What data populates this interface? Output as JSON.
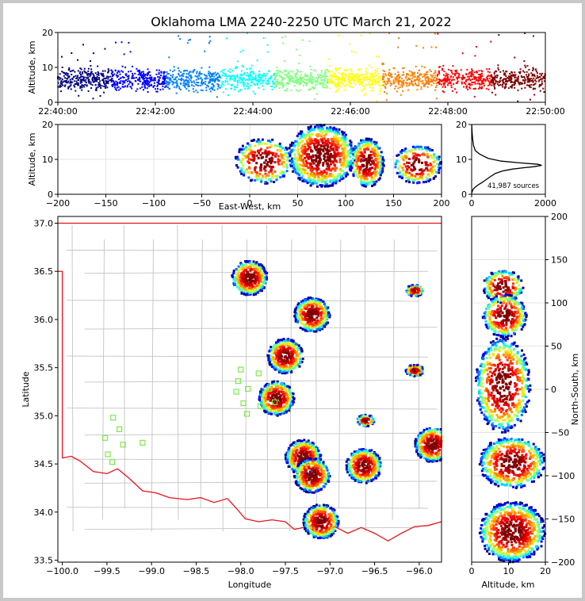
{
  "chart_data": [
    {
      "panel": "time-altitude",
      "type": "scatter",
      "title": "Oklahoma LMA 2240-2250 UTC March 21, 2022",
      "xlabel": "",
      "ylabel": "Altitude, km",
      "xlim": [
        "22:40:00",
        "22:50:00"
      ],
      "ylim": [
        0,
        20
      ],
      "xticks": [
        "22:40:00",
        "22:42:00",
        "22:44:00",
        "22:46:00",
        "22:48:00",
        "22:50:00"
      ],
      "yticks": [
        0,
        10,
        20
      ],
      "color_encoding": "time (jet colormap, blue to dark red)",
      "points": [
        [
          "22:40:10",
          6
        ],
        [
          "22:40:40",
          8
        ],
        [
          "22:41:10",
          5
        ],
        [
          "22:41:40",
          9
        ],
        [
          "22:42:10",
          7
        ],
        [
          "22:42:40",
          6
        ],
        [
          "22:43:10",
          8
        ],
        [
          "22:43:40",
          10
        ],
        [
          "22:44:10",
          7
        ],
        [
          "22:44:40",
          9
        ],
        [
          "22:45:10",
          6
        ],
        [
          "22:45:40",
          8
        ],
        [
          "22:46:10",
          7
        ],
        [
          "22:46:40",
          11
        ],
        [
          "22:47:10",
          8
        ],
        [
          "22:47:40",
          6
        ],
        [
          "22:48:10",
          9
        ],
        [
          "22:48:40",
          7
        ],
        [
          "22:49:10",
          8
        ],
        [
          "22:49:40",
          6
        ]
      ]
    },
    {
      "panel": "east-west-altitude",
      "type": "scatter",
      "xlabel": "East-West, km",
      "ylabel": "Altitude, km",
      "xlim": [
        -200,
        200
      ],
      "ylim": [
        0,
        20
      ],
      "xticks": [
        -200,
        -150,
        -100,
        -50,
        0,
        50,
        100,
        150,
        200
      ],
      "yticks": [
        0,
        10,
        20
      ],
      "grid": true,
      "clusters": [
        {
          "x": [
            -15,
            45
          ],
          "alt": [
            3,
            16
          ]
        },
        {
          "x": [
            40,
            110
          ],
          "alt": [
            2,
            20
          ]
        },
        {
          "x": [
            105,
            140
          ],
          "alt": [
            2,
            16
          ]
        },
        {
          "x": [
            150,
            200
          ],
          "alt": [
            3,
            14
          ]
        }
      ]
    },
    {
      "panel": "altitude-histogram",
      "type": "line",
      "xlim": [
        0,
        2000
      ],
      "ylim": [
        0,
        20
      ],
      "xticks": [
        0,
        2000
      ],
      "yticks": [
        0,
        10,
        20
      ],
      "annotation": "41,987 sources",
      "profile": [
        [
          0,
          0.3
        ],
        [
          40,
          1.5
        ],
        [
          150,
          2.5
        ],
        [
          300,
          3.5
        ],
        [
          500,
          5
        ],
        [
          650,
          6
        ],
        [
          850,
          6.7
        ],
        [
          1100,
          7.2
        ],
        [
          1400,
          7.6
        ],
        [
          1700,
          7.9
        ],
        [
          1900,
          8.3
        ],
        [
          1800,
          8.6
        ],
        [
          1300,
          9
        ],
        [
          800,
          9.5
        ],
        [
          450,
          10.3
        ],
        [
          220,
          11.5
        ],
        [
          100,
          12.5
        ],
        [
          50,
          14
        ],
        [
          25,
          16
        ],
        [
          10,
          18
        ],
        [
          3,
          20
        ]
      ]
    },
    {
      "panel": "plan-view",
      "type": "scatter",
      "xlabel": "Longitude",
      "ylabel": "Latitude",
      "xlim": [
        -100.05,
        -95.75
      ],
      "ylim": [
        33.48,
        37.07
      ],
      "xticks": [
        -100.0,
        -99.5,
        -99.0,
        -98.5,
        -98.0,
        -97.5,
        -97.0,
        -96.5,
        -96.0
      ],
      "yticks": [
        33.5,
        34.0,
        34.5,
        35.0,
        35.5,
        36.0,
        36.5,
        37.0
      ],
      "cells": [
        {
          "lon": -97.9,
          "lat": 36.43
        },
        {
          "lon": -97.2,
          "lat": 36.05
        },
        {
          "lon": -97.5,
          "lat": 35.62
        },
        {
          "lon": -97.6,
          "lat": 35.18
        },
        {
          "lon": -97.3,
          "lat": 34.57
        },
        {
          "lon": -97.2,
          "lat": 34.38
        },
        {
          "lon": -97.1,
          "lat": 33.9
        },
        {
          "lon": -96.62,
          "lat": 34.48
        },
        {
          "lon": -95.85,
          "lat": 34.7
        },
        {
          "lon": -96.05,
          "lat": 36.3
        },
        {
          "lon": -96.05,
          "lat": 35.47
        },
        {
          "lon": -96.6,
          "lat": 34.95
        }
      ],
      "stations": [
        {
          "lon": -98.0,
          "lat": 35.48
        },
        {
          "lon": -97.92,
          "lat": 35.28
        },
        {
          "lon": -98.03,
          "lat": 35.36
        },
        {
          "lon": -98.05,
          "lat": 35.25
        },
        {
          "lon": -97.97,
          "lat": 35.13
        },
        {
          "lon": -97.93,
          "lat": 35.02
        },
        {
          "lon": -97.78,
          "lat": 35.1
        },
        {
          "lon": -97.8,
          "lat": 35.44
        },
        {
          "lon": -97.68,
          "lat": 35.28
        },
        {
          "lon": -97.62,
          "lat": 35.14
        },
        {
          "lon": -99.43,
          "lat": 34.98
        },
        {
          "lon": -99.36,
          "lat": 34.86
        },
        {
          "lon": -99.52,
          "lat": 34.77
        },
        {
          "lon": -99.32,
          "lat": 34.7
        },
        {
          "lon": -99.1,
          "lat": 34.72
        },
        {
          "lon": -99.49,
          "lat": 34.6
        },
        {
          "lon": -99.44,
          "lat": 34.52
        }
      ]
    },
    {
      "panel": "altitude-north-south",
      "type": "scatter",
      "xlabel": "Altitude, km",
      "ylabel": "North-South, km",
      "xlim": [
        0,
        20
      ],
      "ylim": [
        -200,
        200
      ],
      "xticks": [
        0,
        10,
        20
      ],
      "yticks": [
        -200,
        -150,
        -100,
        -50,
        0,
        50,
        100,
        150,
        200
      ],
      "grid": true,
      "clusters": [
        {
          "ns": [
            100,
            138
          ],
          "alt": [
            3,
            14
          ]
        },
        {
          "ns": [
            60,
            110
          ],
          "alt": [
            3,
            15
          ]
        },
        {
          "ns": [
            -50,
            60
          ],
          "alt": [
            1,
            16
          ]
        },
        {
          "ns": [
            -115,
            -55
          ],
          "alt": [
            2,
            20
          ]
        },
        {
          "ns": [
            -200,
            -130
          ],
          "alt": [
            2,
            20
          ]
        }
      ]
    }
  ],
  "colors": {
    "jet": [
      "#00007f",
      "#0000ff",
      "#007fff",
      "#00ffff",
      "#7fff7f",
      "#ffff00",
      "#ff7f00",
      "#ff0000",
      "#7f0000"
    ],
    "state_border": "#e8141a",
    "county_lines": "#c4c4c4",
    "station_marker": "#7ee84a",
    "histogram_line": "#000000",
    "grid": "#dcdcdc"
  }
}
